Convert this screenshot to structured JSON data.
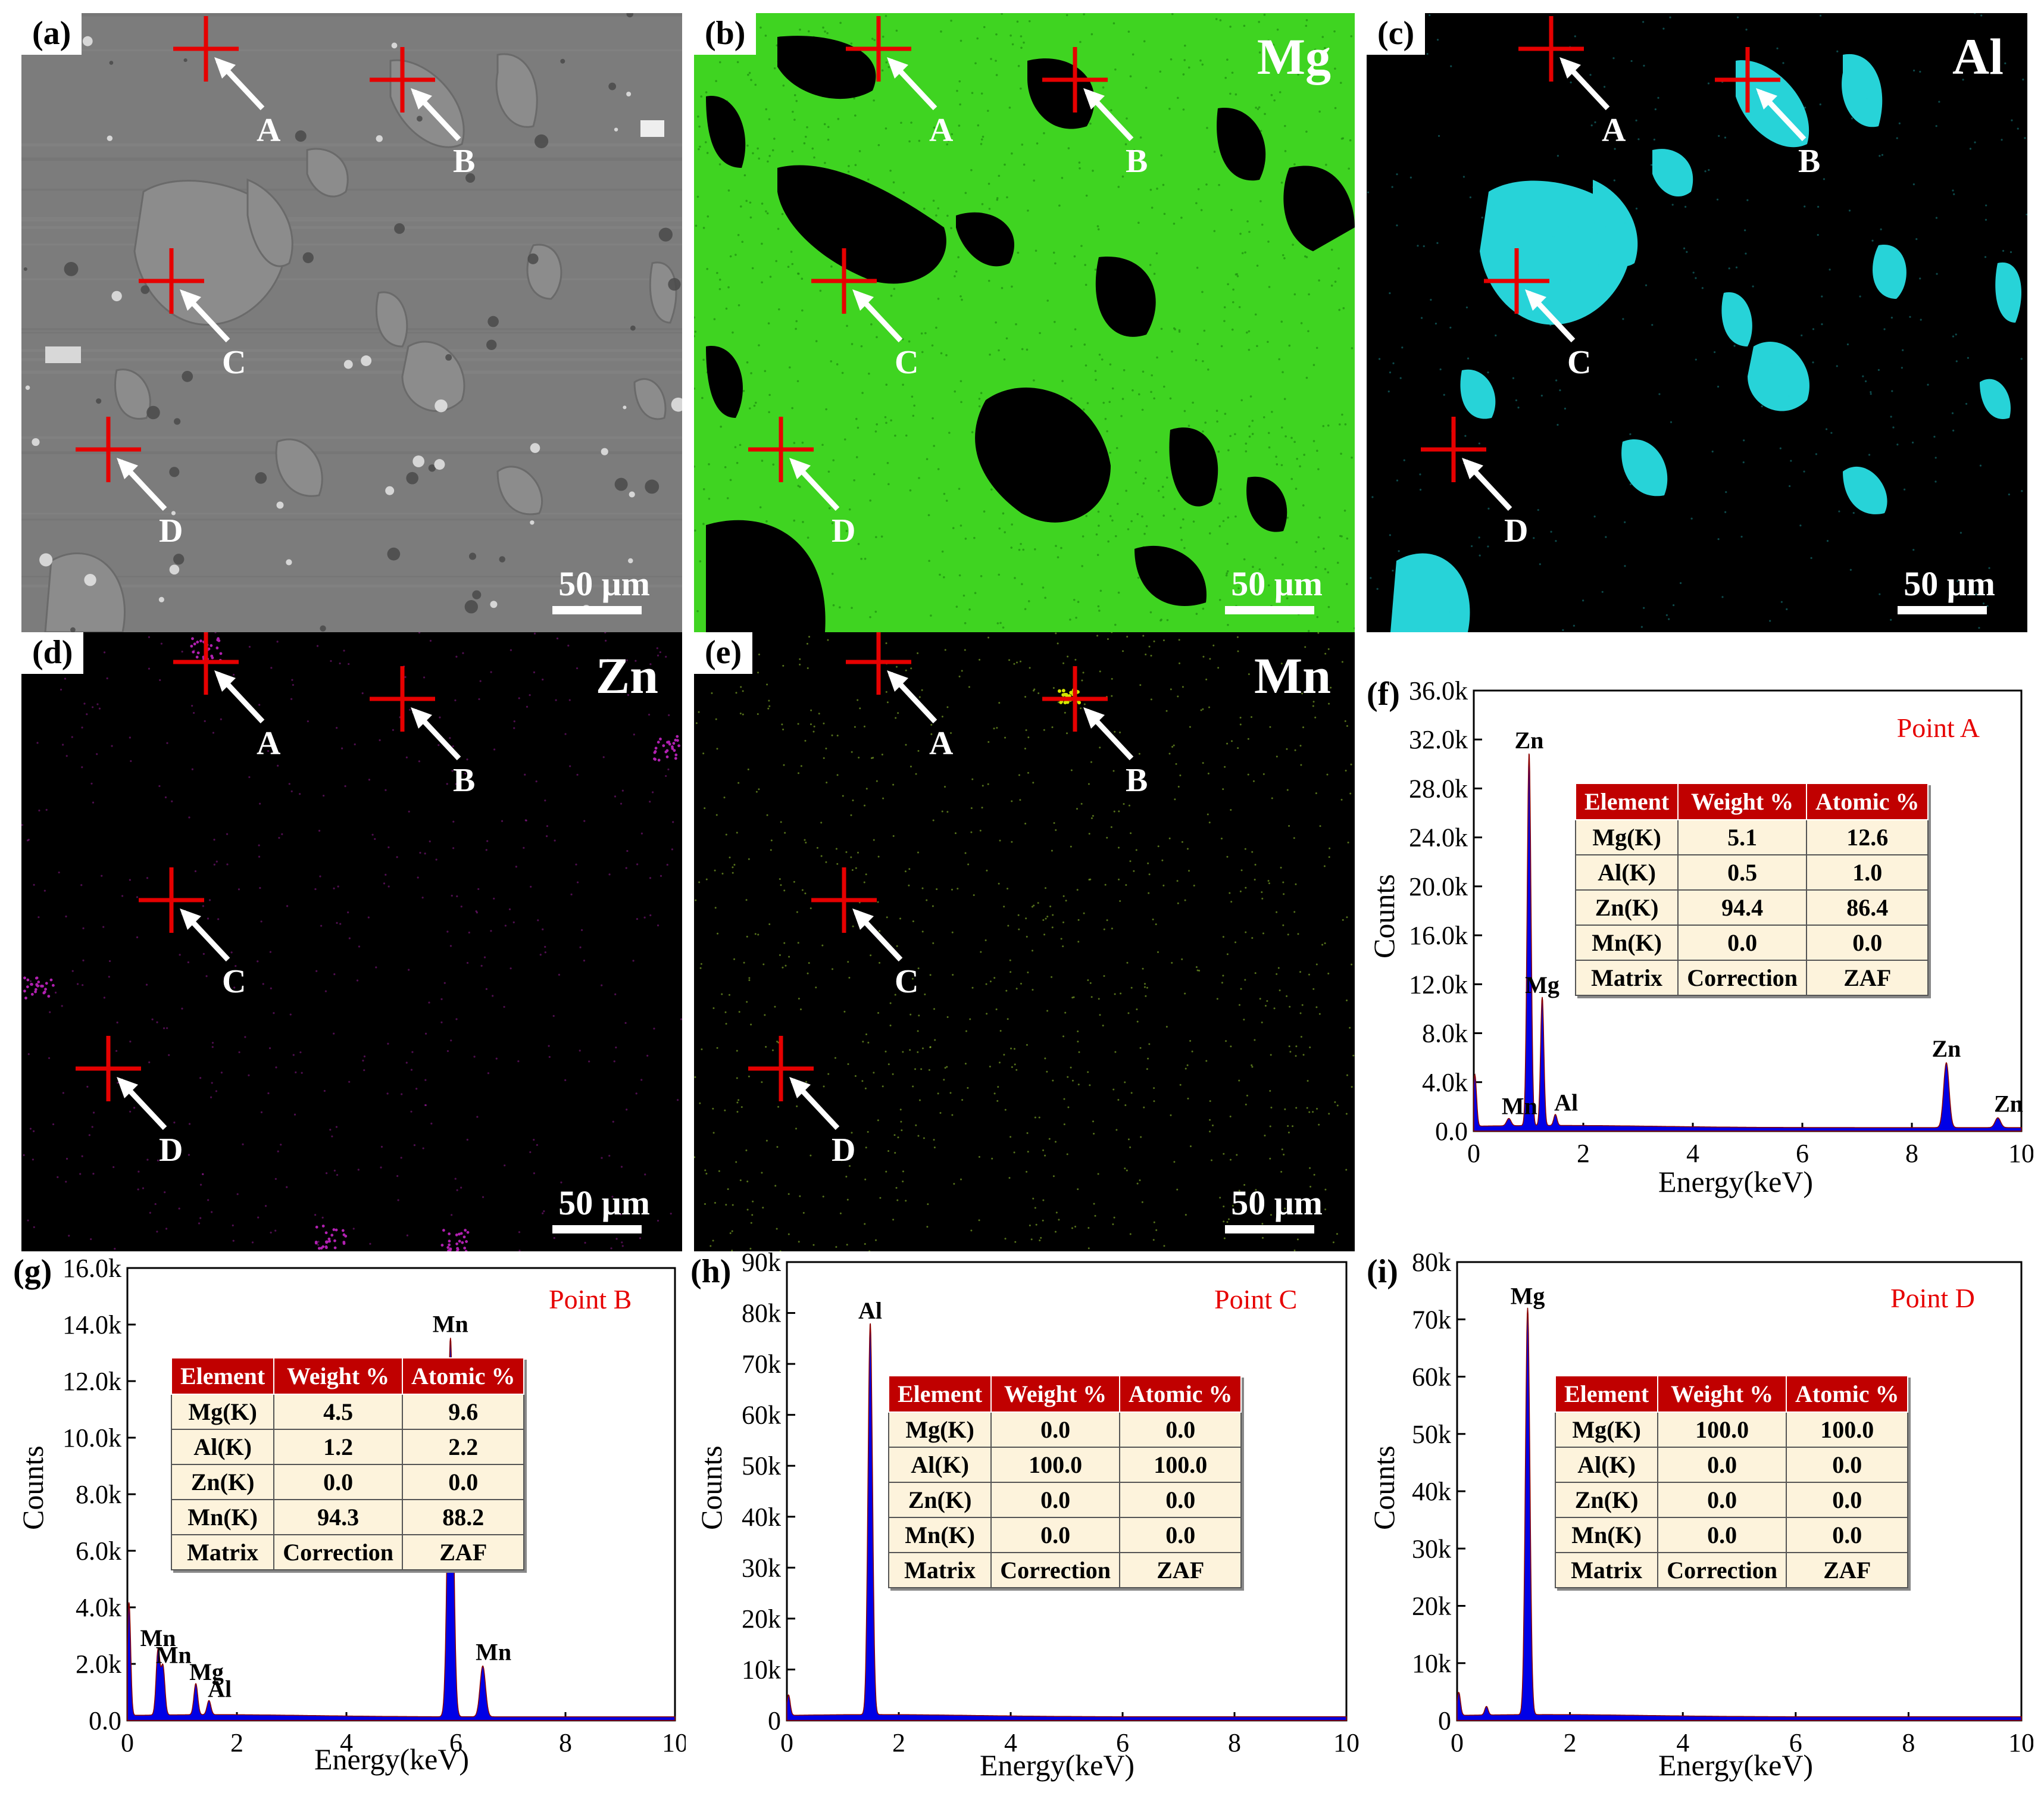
{
  "maps": [
    {
      "id": "a",
      "label": "(a)",
      "element": "",
      "kind": "sem",
      "scale": "50 μm",
      "points": [
        "A",
        "B",
        "C",
        "D"
      ]
    },
    {
      "id": "b",
      "label": "(b)",
      "element": "Mg",
      "kind": "mg",
      "scale": "50 μm",
      "points": [
        "A",
        "B",
        "C",
        "D"
      ]
    },
    {
      "id": "c",
      "label": "(c)",
      "element": "Al",
      "kind": "al",
      "scale": "50 μm",
      "points": [
        "A",
        "B",
        "C",
        "D"
      ]
    },
    {
      "id": "d",
      "label": "(d)",
      "element": "Zn",
      "kind": "zn",
      "scale": "50 μm",
      "points": [
        "A",
        "B",
        "C",
        "D"
      ]
    },
    {
      "id": "e",
      "label": "(e)",
      "element": "Mn",
      "kind": "mn",
      "scale": "50 μm",
      "points": [
        "A",
        "B",
        "C",
        "D"
      ]
    }
  ],
  "colors": {
    "cross": "#e60000",
    "spectrum": "#0000e6",
    "spectrum_edge": "#8b0000",
    "mg_map": "#3fd421",
    "al_map": "#27d3d8",
    "zn_map": "#b020b0",
    "mn_map": "#9acd32",
    "table_header": "#c00000",
    "table_body": "#fdf3dc"
  },
  "chart_data": [
    {
      "id": "f",
      "label": "(f)",
      "type": "line",
      "point": "Point A",
      "xlabel": "Energy(keV)",
      "ylabel": "Counts",
      "xlim": [
        0,
        10
      ],
      "ylim": [
        0,
        36000
      ],
      "xticks": [
        "0",
        "2",
        "4",
        "6",
        "8",
        "10"
      ],
      "yticks": [
        "0.0",
        "4.0k",
        "8.0k",
        "12.0k",
        "16.0k",
        "20.0k",
        "24.0k",
        "28.0k",
        "32.0k",
        "36.0k"
      ],
      "peaks": [
        {
          "x": 0.02,
          "y": 4200,
          "w": 0.03,
          "label": ""
        },
        {
          "x": 0.64,
          "y": 600,
          "w": 0.04,
          "label": "Mn"
        },
        {
          "x": 1.01,
          "y": 30500,
          "w": 0.035,
          "label": "Zn"
        },
        {
          "x": 1.25,
          "y": 10500,
          "w": 0.03,
          "label": "Mg"
        },
        {
          "x": 1.49,
          "y": 900,
          "w": 0.03,
          "label": "Al"
        },
        {
          "x": 8.63,
          "y": 5300,
          "w": 0.05,
          "label": "Zn"
        },
        {
          "x": 9.57,
          "y": 800,
          "w": 0.05,
          "label": "Zn"
        }
      ],
      "table": {
        "headers": [
          "Element",
          "Weight %",
          "Atomic %"
        ],
        "rows": [
          [
            "Mg(K)",
            "5.1",
            "12.6"
          ],
          [
            "Al(K)",
            "0.5",
            "1.0"
          ],
          [
            "Zn(K)",
            "94.4",
            "86.4"
          ],
          [
            "Mn(K)",
            "0.0",
            "0.0"
          ],
          [
            "Matrix",
            "Correction",
            "ZAF"
          ]
        ]
      }
    },
    {
      "id": "g",
      "label": "(g)",
      "type": "line",
      "point": "Point B",
      "xlabel": "Energy(keV)",
      "ylabel": "Counts",
      "xlim": [
        0,
        10
      ],
      "ylim": [
        0,
        16000
      ],
      "xticks": [
        "0",
        "2",
        "4",
        "6",
        "8",
        "10"
      ],
      "yticks": [
        "0.0",
        "2.0k",
        "4.0k",
        "6.0k",
        "8.0k",
        "10.0k",
        "12.0k",
        "14.0k",
        "16.0k"
      ],
      "peaks": [
        {
          "x": 0.03,
          "y": 4000,
          "w": 0.03,
          "label": ""
        },
        {
          "x": 0.56,
          "y": 2300,
          "w": 0.035,
          "label": "Mn"
        },
        {
          "x": 0.65,
          "y": 1700,
          "w": 0.035,
          "label": "Mn"
        },
        {
          "x": 1.25,
          "y": 1100,
          "w": 0.035,
          "label": "Mg"
        },
        {
          "x": 1.49,
          "y": 500,
          "w": 0.035,
          "label": "Al"
        },
        {
          "x": 5.9,
          "y": 13400,
          "w": 0.05,
          "label": "Mn"
        },
        {
          "x": 6.49,
          "y": 1800,
          "w": 0.05,
          "label": "Mn"
        }
      ],
      "table": {
        "headers": [
          "Element",
          "Weight %",
          "Atomic %"
        ],
        "rows": [
          [
            "Mg(K)",
            "4.5",
            "9.6"
          ],
          [
            "Al(K)",
            "1.2",
            "2.2"
          ],
          [
            "Zn(K)",
            "0.0",
            "0.0"
          ],
          [
            "Mn(K)",
            "94.3",
            "88.2"
          ],
          [
            "Matrix",
            "Correction",
            "ZAF"
          ]
        ]
      }
    },
    {
      "id": "h",
      "label": "(h)",
      "type": "line",
      "point": "Point C",
      "xlabel": "Energy(keV)",
      "ylabel": "Counts",
      "xlim": [
        0,
        10
      ],
      "ylim": [
        0,
        90000
      ],
      "xticks": [
        "0",
        "2",
        "4",
        "6",
        "8",
        "10"
      ],
      "yticks": [
        "0",
        "10k",
        "20k",
        "30k",
        "40k",
        "50k",
        "60k",
        "70k",
        "80k",
        "90k"
      ],
      "peaks": [
        {
          "x": 0.03,
          "y": 4000,
          "w": 0.03,
          "label": ""
        },
        {
          "x": 1.49,
          "y": 77000,
          "w": 0.04,
          "label": "Al"
        }
      ],
      "table": {
        "headers": [
          "Element",
          "Weight %",
          "Atomic %"
        ],
        "rows": [
          [
            "Mg(K)",
            "0.0",
            "0.0"
          ],
          [
            "Al(K)",
            "100.0",
            "100.0"
          ],
          [
            "Zn(K)",
            "0.0",
            "0.0"
          ],
          [
            "Mn(K)",
            "0.0",
            "0.0"
          ],
          [
            "Matrix",
            "Correction",
            "ZAF"
          ]
        ]
      }
    },
    {
      "id": "i",
      "label": "(i)",
      "type": "line",
      "point": "Point D",
      "xlabel": "Energy(keV)",
      "ylabel": "Counts",
      "xlim": [
        0,
        10
      ],
      "ylim": [
        0,
        80000
      ],
      "xticks": [
        "0",
        "2",
        "4",
        "6",
        "8",
        "10"
      ],
      "yticks": [
        "0",
        "10k",
        "20k",
        "30k",
        "40k",
        "50k",
        "60k",
        "70k",
        "80k"
      ],
      "peaks": [
        {
          "x": 0.03,
          "y": 4000,
          "w": 0.03,
          "label": ""
        },
        {
          "x": 0.52,
          "y": 1500,
          "w": 0.03,
          "label": ""
        },
        {
          "x": 1.25,
          "y": 71000,
          "w": 0.04,
          "label": "Mg"
        }
      ],
      "table": {
        "headers": [
          "Element",
          "Weight %",
          "Atomic %"
        ],
        "rows": [
          [
            "Mg(K)",
            "100.0",
            "100.0"
          ],
          [
            "Al(K)",
            "0.0",
            "0.0"
          ],
          [
            "Zn(K)",
            "0.0",
            "0.0"
          ],
          [
            "Mn(K)",
            "0.0",
            "0.0"
          ],
          [
            "Matrix",
            "Correction",
            "ZAF"
          ]
        ]
      }
    }
  ]
}
